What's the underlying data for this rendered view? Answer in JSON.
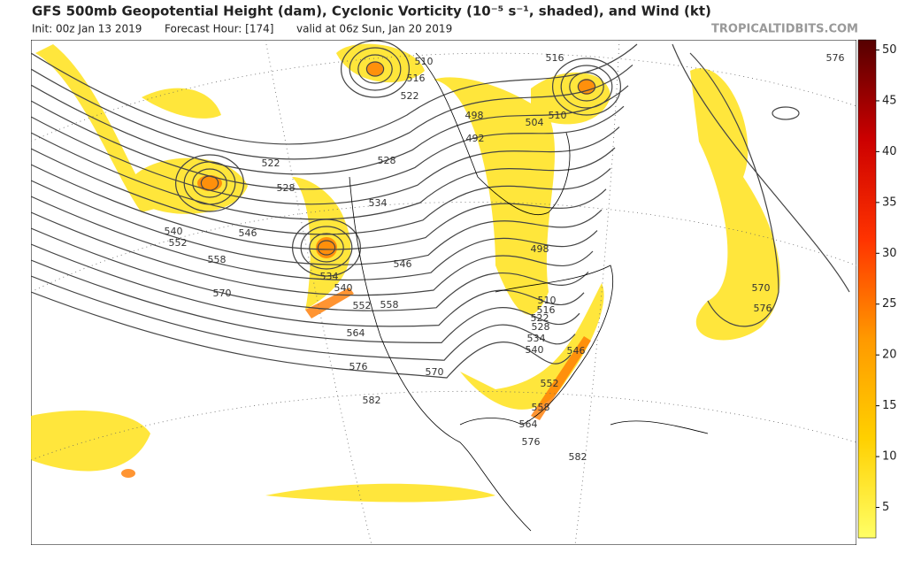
{
  "header": {
    "title": "GFS 500mb Geopotential Height (dam), Cyclonic Vorticity (10⁻⁵ s⁻¹, shaded), and Wind (kt)",
    "init": "Init: 00z Jan 13 2019",
    "forecast_hour": "Forecast Hour: [174]",
    "valid": "valid at 06z Sun, Jan 20 2019",
    "source": "TROPICALTIDBITS.COM"
  },
  "colorbar": {
    "range": [
      2,
      51
    ],
    "ticks": [
      5,
      10,
      15,
      20,
      25,
      30,
      35,
      40,
      45,
      50
    ]
  },
  "contour_labels": [
    510,
    516,
    522,
    516,
    510,
    504,
    498,
    492,
    528,
    522,
    528,
    534,
    540,
    552,
    546,
    558,
    570,
    546,
    534,
    540,
    552,
    558,
    564,
    576,
    570,
    582,
    498,
    510,
    516,
    522,
    528,
    534,
    540,
    546,
    552,
    558,
    564,
    576,
    582,
    570,
    576,
    576
  ]
}
